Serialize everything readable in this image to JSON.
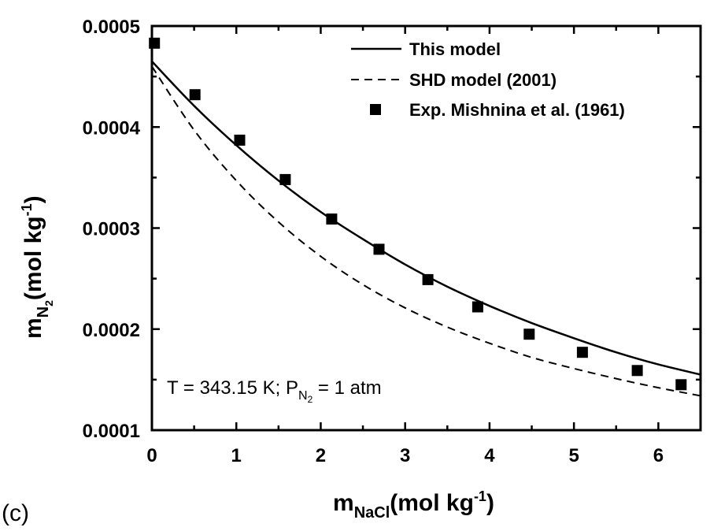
{
  "panel_label": "(c)",
  "chart_data": {
    "type": "line",
    "xlabel": {
      "main": "m",
      "sub": "NaCl",
      "unit_pre": "(mol kg",
      "unit_sup": "-1",
      "unit_post": ")"
    },
    "ylabel": {
      "main": "m",
      "sub": "N",
      "subsub": "2",
      "unit_pre": "(mol kg",
      "unit_sup": "-1",
      "unit_post": ")"
    },
    "xlim": [
      0,
      6.5
    ],
    "ylim": [
      0.0001,
      0.0005
    ],
    "xticks": [
      "0",
      "1",
      "2",
      "3",
      "4",
      "5",
      "6"
    ],
    "yticks": [
      "0.0001",
      "0.0002",
      "0.0003",
      "0.0004",
      "0.0005"
    ],
    "grid": false,
    "legend_position": "top-right",
    "annotation": {
      "pre": "T = 343.15 K; P",
      "sub": "N",
      "subsub": "2",
      "post": " = 1 atm"
    },
    "series": [
      {
        "name": "This model",
        "style": "solid",
        "x": [
          0,
          0.5,
          1,
          1.5,
          2,
          2.5,
          3,
          3.5,
          4,
          4.5,
          5,
          5.5,
          6,
          6.5
        ],
        "y": [
          0.000465,
          0.000421,
          0.000382,
          0.000347,
          0.000316,
          0.000289,
          0.000264,
          0.000242,
          0.000223,
          0.000206,
          0.000191,
          0.000177,
          0.000165,
          0.000155
        ]
      },
      {
        "name": "SHD model (2001)",
        "style": "dashed",
        "x": [
          0,
          0.5,
          1,
          1.5,
          2,
          2.5,
          3,
          3.5,
          4,
          4.5,
          5,
          5.5,
          6,
          6.5
        ],
        "y": [
          0.00046,
          0.000397,
          0.000347,
          0.000306,
          0.000272,
          0.000244,
          0.000221,
          0.000202,
          0.000186,
          0.000172,
          0.000161,
          0.000151,
          0.000142,
          0.000134
        ]
      },
      {
        "name": "Exp. Mishnina et al. (1961)",
        "style": "marker",
        "x": [
          0.03,
          0.51,
          1.04,
          1.58,
          2.13,
          2.69,
          3.27,
          3.86,
          4.47,
          5.1,
          5.75,
          6.27
        ],
        "y": [
          0.000483,
          0.000432,
          0.000387,
          0.000348,
          0.000309,
          0.000279,
          0.000249,
          0.000222,
          0.000195,
          0.000177,
          0.000159,
          0.000145
        ]
      }
    ]
  }
}
